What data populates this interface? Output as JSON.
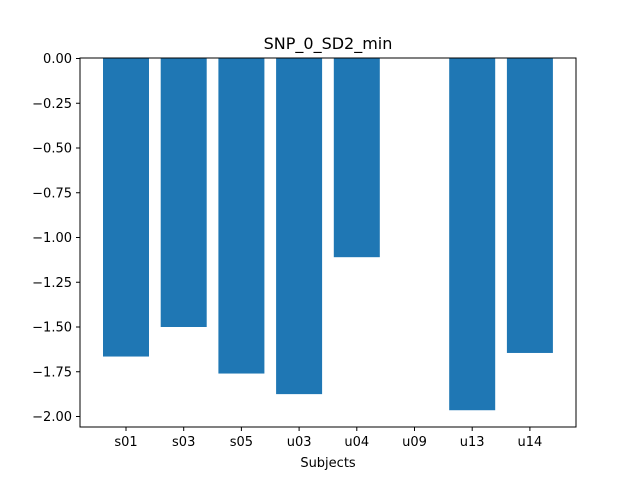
{
  "chart_data": {
    "type": "bar",
    "title": "SNP_0_SD2_min",
    "xlabel": "Subjects",
    "ylabel": "",
    "categories": [
      "s01",
      "s03",
      "s05",
      "u03",
      "u04",
      "u09",
      "u13",
      "u14"
    ],
    "values": [
      -1.665,
      -1.5,
      -1.76,
      -1.875,
      -1.11,
      0.0,
      -1.965,
      -1.645
    ],
    "ylim": [
      -2.06,
      0.0
    ],
    "yticks": [
      0.0,
      -0.25,
      -0.5,
      -0.75,
      -1.0,
      -1.25,
      -1.5,
      -1.75,
      -2.0
    ],
    "ytick_labels": [
      "0.00",
      "−0.25",
      "−0.50",
      "−0.75",
      "−1.00",
      "−1.25",
      "−1.50",
      "−1.75",
      "−2.00"
    ],
    "grid": false,
    "bar_color": "#1f77b4"
  }
}
